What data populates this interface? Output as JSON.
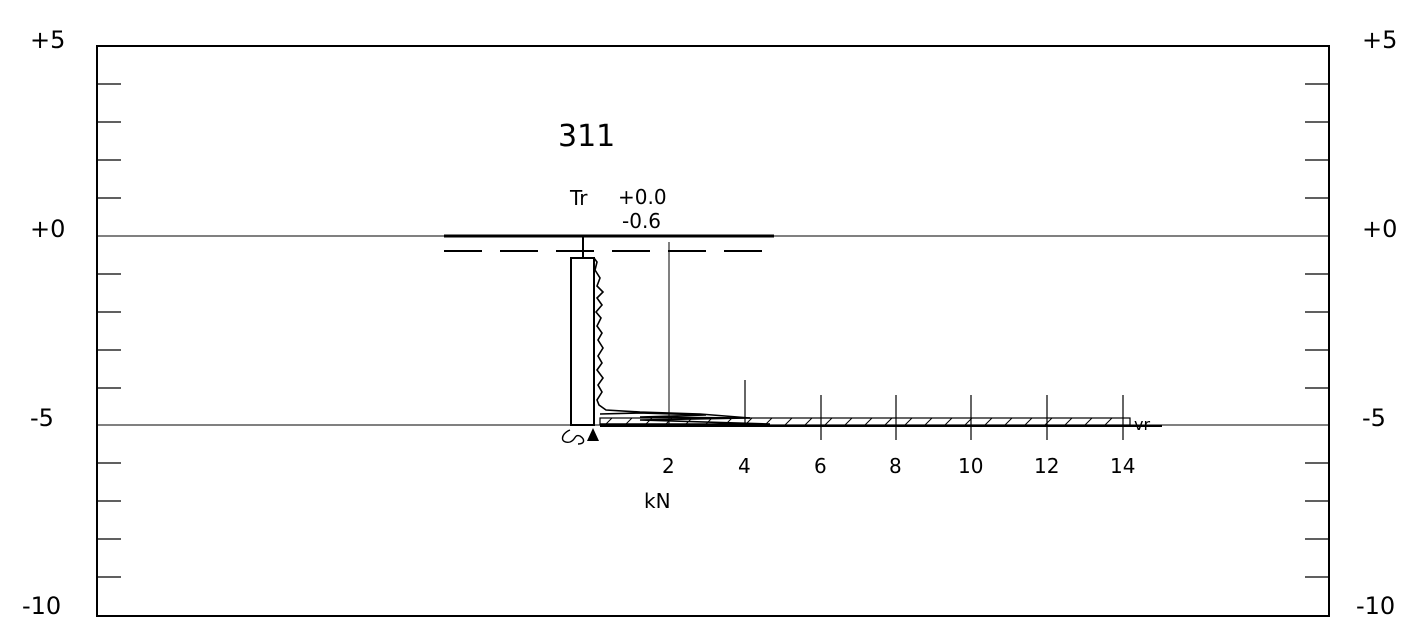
{
  "title": "311",
  "level_labels": {
    "name": "Tr",
    "top": "+0.0",
    "sub": "-0.6"
  },
  "depth_ticks_left": [
    "+5",
    "+0",
    "-5",
    "-10"
  ],
  "depth_ticks_right": [
    "+5",
    "+0",
    "-5",
    "-10"
  ],
  "force_ticks": [
    "2",
    "4",
    "6",
    "8",
    "10",
    "12",
    "14"
  ],
  "force_unit": "kN",
  "end_label": "vr",
  "colors": {
    "ink": "#000000",
    "background": "#ffffff"
  }
}
